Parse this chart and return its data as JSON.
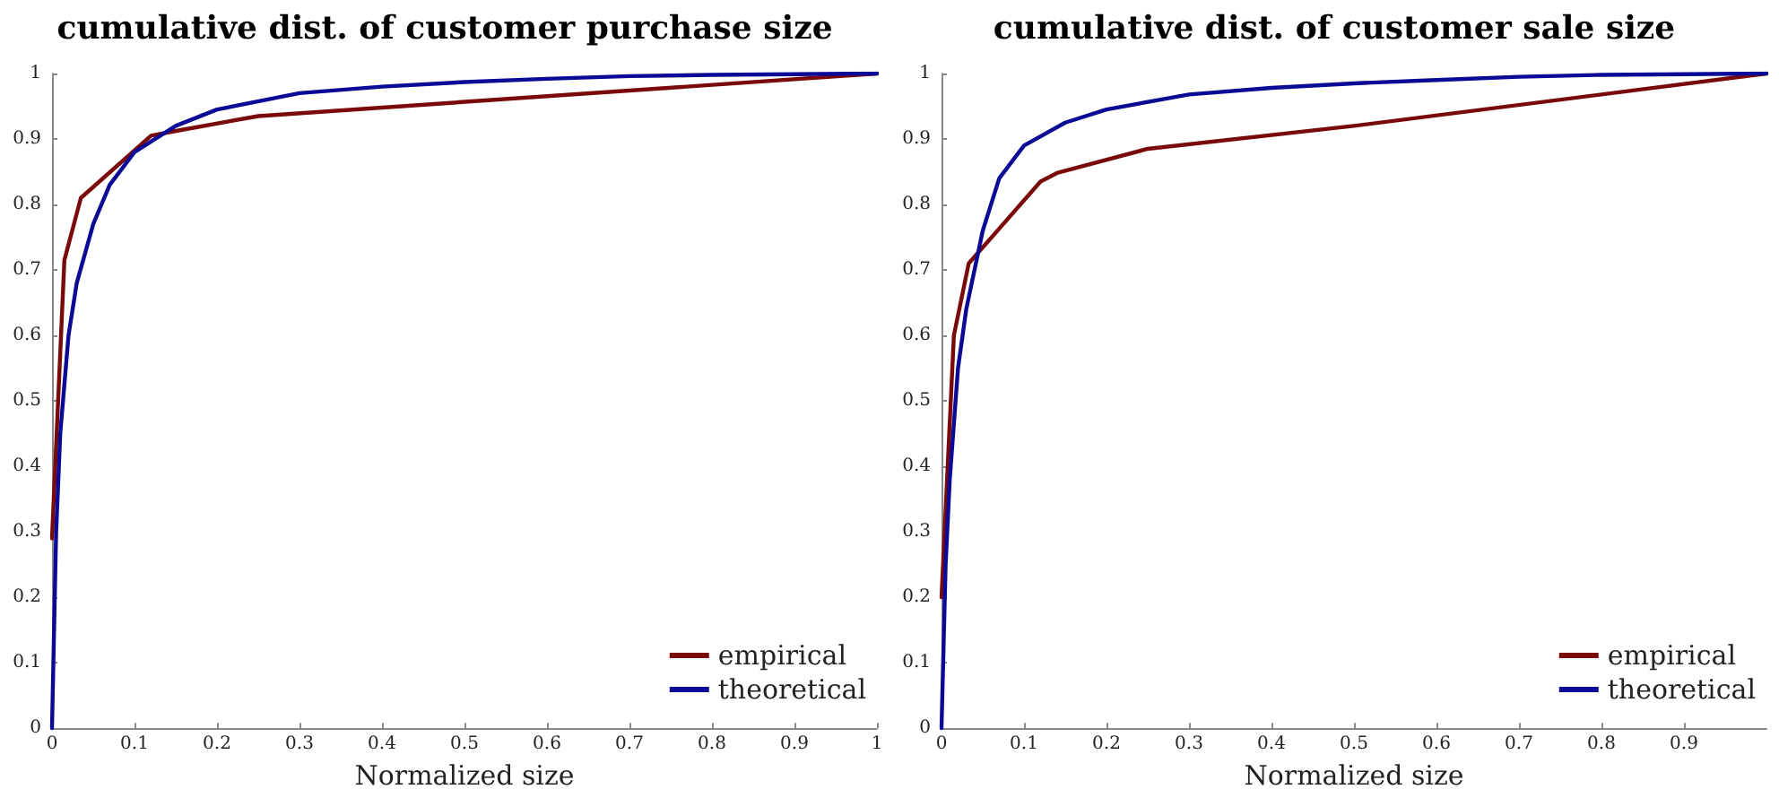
{
  "chart_data": [
    {
      "type": "line",
      "title": "cumulative dist. of customer purchase size",
      "xlabel": "Normalized size",
      "xlim": [
        0,
        1
      ],
      "xticks": [
        0,
        0.1,
        0.2,
        0.3,
        0.4,
        0.5,
        0.6,
        0.7,
        0.8,
        0.9,
        1
      ],
      "ylim": [
        0,
        1
      ],
      "yticks": [
        0,
        0.1,
        0.2,
        0.3,
        0.4,
        0.5,
        0.6,
        0.7,
        0.8,
        0.9,
        1
      ],
      "grid": false,
      "legend": "bottom right",
      "marker": "none",
      "line_style": "solid",
      "series": [
        {
          "name": "empirical",
          "color": "#7a0a0a",
          "x": [
            0,
            0.015,
            0.035,
            0.12,
            0.14,
            0.25,
            1
          ],
          "values": [
            0.29,
            0.715,
            0.81,
            0.905,
            0.91,
            0.935,
            1
          ]
        },
        {
          "name": "theoretical",
          "color": "#0a0a96",
          "x": [
            0,
            0.005,
            0.01,
            0.02,
            0.03,
            0.05,
            0.07,
            0.1,
            0.15,
            0.2,
            0.3,
            0.4,
            0.5,
            0.6,
            0.7,
            0.8,
            0.9,
            1
          ],
          "values": [
            0,
            0.3,
            0.45,
            0.6,
            0.68,
            0.77,
            0.83,
            0.88,
            0.92,
            0.945,
            0.97,
            0.98,
            0.987,
            0.992,
            0.996,
            0.998,
            0.999,
            1
          ]
        }
      ]
    },
    {
      "type": "line",
      "title": "cumulative dist. of customer sale size",
      "xlabel": "Normalized size",
      "xlim": [
        0,
        1
      ],
      "xticks": [
        0,
        0.1,
        0.2,
        0.3,
        0.4,
        0.5,
        0.6,
        0.7,
        0.8,
        0.9
      ],
      "ylim": [
        0,
        1
      ],
      "yticks": [
        0,
        0.1,
        0.2,
        0.3,
        0.4,
        0.5,
        0.6,
        0.7,
        0.8,
        0.9,
        1
      ],
      "grid": false,
      "legend": "bottom right",
      "marker": "none",
      "line_style": "solid",
      "series": [
        {
          "name": "empirical",
          "color": "#7a0a0a",
          "x": [
            0,
            0.015,
            0.033,
            0.12,
            0.14,
            0.25,
            0.5,
            1
          ],
          "values": [
            0.2,
            0.6,
            0.71,
            0.835,
            0.848,
            0.885,
            0.92,
            1
          ]
        },
        {
          "name": "theoretical",
          "color": "#0a0a96",
          "x": [
            0,
            0.005,
            0.01,
            0.02,
            0.03,
            0.05,
            0.07,
            0.1,
            0.15,
            0.2,
            0.3,
            0.4,
            0.5,
            0.6,
            0.7,
            0.8,
            1
          ],
          "values": [
            0,
            0.25,
            0.38,
            0.55,
            0.64,
            0.76,
            0.84,
            0.89,
            0.925,
            0.945,
            0.968,
            0.978,
            0.985,
            0.99,
            0.995,
            0.998,
            1
          ]
        }
      ]
    }
  ]
}
